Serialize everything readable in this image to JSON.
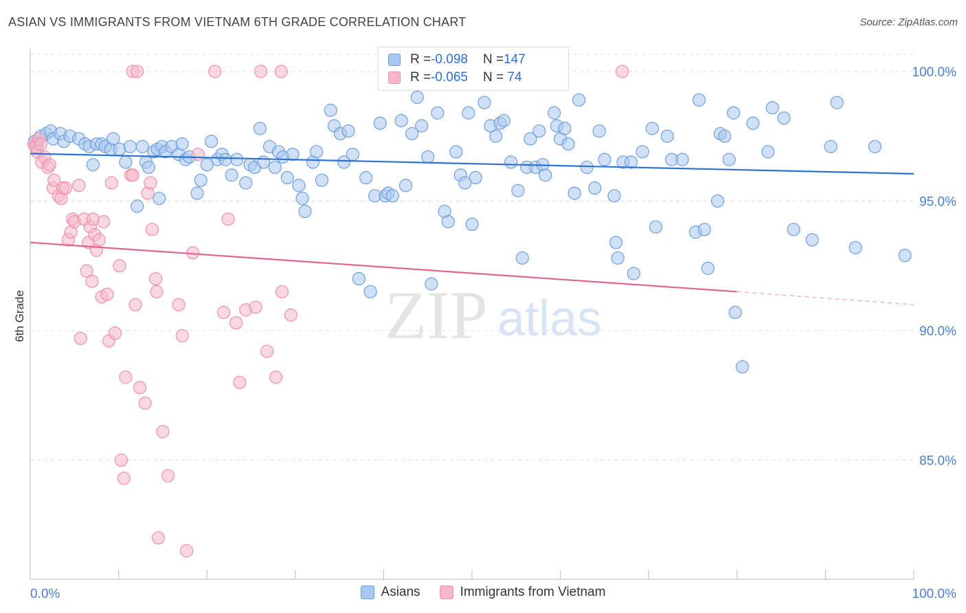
{
  "title": "ASIAN VS IMMIGRANTS FROM VIETNAM 6TH GRADE CORRELATION CHART",
  "source": "Source: ZipAtlas.com",
  "watermark": {
    "zip": "ZIP",
    "atlas": "atlas"
  },
  "colors": {
    "blue_fill": "#a9c8f0",
    "blue_stroke": "#6e9fdc",
    "blue_line": "#2d72d2",
    "pink_fill": "#f5b8cb",
    "pink_stroke": "#ee8fac",
    "pink_line": "#e0658e",
    "axis_text": "#4a7fd0",
    "grid": "#dddddd"
  },
  "legend": {
    "rows": [
      {
        "r_label": "R = ",
        "r_value": "-0.098",
        "n_label": "N = ",
        "n_value": "147"
      },
      {
        "r_label": "R = ",
        "r_value": "-0.065",
        "n_label": "N = ",
        "n_value": " 74"
      }
    ]
  },
  "chart_data": {
    "type": "scatter",
    "title": "ASIAN VS IMMIGRANTS FROM VIETNAM 6TH GRADE CORRELATION CHART",
    "ylabel": "6th Grade",
    "xlabel": "",
    "xlim": [
      0,
      100
    ],
    "ylim": [
      80.4,
      100.9
    ],
    "x_tick_labels": [
      "0.0%",
      "100.0%"
    ],
    "y_ticks": [
      85,
      90,
      95,
      100
    ],
    "y_tick_labels": [
      "85.0%",
      "90.0%",
      "95.0%",
      "100.0%"
    ],
    "grid": true,
    "legend_position": "bottom",
    "series": [
      {
        "name": "Asians",
        "trend": {
          "x0": 0,
          "y0": 96.83,
          "x1": 100,
          "y1": 96.05
        },
        "points": [
          [
            0.5,
            97.3
          ],
          [
            0.8,
            97.2
          ],
          [
            1.2,
            97.5
          ],
          [
            1.8,
            97.6
          ],
          [
            2.3,
            97.7
          ],
          [
            2.6,
            97.4
          ],
          [
            3.4,
            97.6
          ],
          [
            3.8,
            97.3
          ],
          [
            4.5,
            97.5
          ],
          [
            5.5,
            97.4
          ],
          [
            6.2,
            97.2
          ],
          [
            6.7,
            97.1
          ],
          [
            7.1,
            96.4
          ],
          [
            7.5,
            97.2
          ],
          [
            8.1,
            97.2
          ],
          [
            8.5,
            97.1
          ],
          [
            9.1,
            97.0
          ],
          [
            9.4,
            97.4
          ],
          [
            10.1,
            97.0
          ],
          [
            10.8,
            96.5
          ],
          [
            11.3,
            97.1
          ],
          [
            12.1,
            94.8
          ],
          [
            12.7,
            97.1
          ],
          [
            13.1,
            96.5
          ],
          [
            13.4,
            96.3
          ],
          [
            14.0,
            96.9
          ],
          [
            14.4,
            97.0
          ],
          [
            14.6,
            95.1
          ],
          [
            14.9,
            97.1
          ],
          [
            15.3,
            96.9
          ],
          [
            16.0,
            97.1
          ],
          [
            16.8,
            96.8
          ],
          [
            17.2,
            97.2
          ],
          [
            17.6,
            96.6
          ],
          [
            18.0,
            96.7
          ],
          [
            18.9,
            95.3
          ],
          [
            19.3,
            95.8
          ],
          [
            20.0,
            96.4
          ],
          [
            20.5,
            97.3
          ],
          [
            21.2,
            96.6
          ],
          [
            21.7,
            96.8
          ],
          [
            22.1,
            96.6
          ],
          [
            22.8,
            96.0
          ],
          [
            23.4,
            96.6
          ],
          [
            24.4,
            95.7
          ],
          [
            24.9,
            96.4
          ],
          [
            25.4,
            96.3
          ],
          [
            26.0,
            97.8
          ],
          [
            26.4,
            96.5
          ],
          [
            27.1,
            97.1
          ],
          [
            27.7,
            96.3
          ],
          [
            28.1,
            96.9
          ],
          [
            28.6,
            96.7
          ],
          [
            29.1,
            95.9
          ],
          [
            29.7,
            96.8
          ],
          [
            30.4,
            95.6
          ],
          [
            30.8,
            95.1
          ],
          [
            31.1,
            94.6
          ],
          [
            32.0,
            96.5
          ],
          [
            32.4,
            96.9
          ],
          [
            33.0,
            95.8
          ],
          [
            34.0,
            98.5
          ],
          [
            34.4,
            97.9
          ],
          [
            35.1,
            97.6
          ],
          [
            35.5,
            96.5
          ],
          [
            36.0,
            97.7
          ],
          [
            36.5,
            96.8
          ],
          [
            37.2,
            92.0
          ],
          [
            38.0,
            95.9
          ],
          [
            38.5,
            91.5
          ],
          [
            39.0,
            95.2
          ],
          [
            39.6,
            98.0
          ],
          [
            40.2,
            95.2
          ],
          [
            40.5,
            95.3
          ],
          [
            41.0,
            95.2
          ],
          [
            42.0,
            98.1
          ],
          [
            42.5,
            95.6
          ],
          [
            43.2,
            97.6
          ],
          [
            43.8,
            99.0
          ],
          [
            44.3,
            97.9
          ],
          [
            45.0,
            96.7
          ],
          [
            45.4,
            91.8
          ],
          [
            46.1,
            98.4
          ],
          [
            46.9,
            94.6
          ],
          [
            47.3,
            94.2
          ],
          [
            48.2,
            96.9
          ],
          [
            48.7,
            96.0
          ],
          [
            49.2,
            95.7
          ],
          [
            49.6,
            98.4
          ],
          [
            50.0,
            94.1
          ],
          [
            50.4,
            95.9
          ],
          [
            51.4,
            98.8
          ],
          [
            52.1,
            97.9
          ],
          [
            52.7,
            97.5
          ],
          [
            53.2,
            98.0
          ],
          [
            53.6,
            98.1
          ],
          [
            54.4,
            96.5
          ],
          [
            55.2,
            95.4
          ],
          [
            55.7,
            92.8
          ],
          [
            56.2,
            96.3
          ],
          [
            56.6,
            97.4
          ],
          [
            57.2,
            96.3
          ],
          [
            57.6,
            97.7
          ],
          [
            58.0,
            96.4
          ],
          [
            58.3,
            96.0
          ],
          [
            59.3,
            98.4
          ],
          [
            59.6,
            97.9
          ],
          [
            60.0,
            97.4
          ],
          [
            60.5,
            97.8
          ],
          [
            60.9,
            97.2
          ],
          [
            61.6,
            95.3
          ],
          [
            62.1,
            98.9
          ],
          [
            63.0,
            96.3
          ],
          [
            63.9,
            95.5
          ],
          [
            64.4,
            97.7
          ],
          [
            65.0,
            96.6
          ],
          [
            66.1,
            95.2
          ],
          [
            66.3,
            93.4
          ],
          [
            66.5,
            92.8
          ],
          [
            67.1,
            96.5
          ],
          [
            68.0,
            96.5
          ],
          [
            68.3,
            92.2
          ],
          [
            69.3,
            96.9
          ],
          [
            70.4,
            97.8
          ],
          [
            70.8,
            94.0
          ],
          [
            72.1,
            97.5
          ],
          [
            72.6,
            96.6
          ],
          [
            73.8,
            96.6
          ],
          [
            75.3,
            93.8
          ],
          [
            75.7,
            98.9
          ],
          [
            76.3,
            93.9
          ],
          [
            76.7,
            92.4
          ],
          [
            77.8,
            95.0
          ],
          [
            78.1,
            97.6
          ],
          [
            78.6,
            97.5
          ],
          [
            79.1,
            96.6
          ],
          [
            79.6,
            98.4
          ],
          [
            79.8,
            90.7
          ],
          [
            80.6,
            88.6
          ],
          [
            81.8,
            98.0
          ],
          [
            83.5,
            96.9
          ],
          [
            84.0,
            98.6
          ],
          [
            85.3,
            98.2
          ],
          [
            86.4,
            93.9
          ],
          [
            88.5,
            93.5
          ],
          [
            90.6,
            97.1
          ],
          [
            91.3,
            98.8
          ],
          [
            93.4,
            93.2
          ],
          [
            95.6,
            97.1
          ],
          [
            99.0,
            92.9
          ]
        ]
      },
      {
        "name": "Immigrants from Vietnam",
        "trend": {
          "x0": 0,
          "y0": 93.4,
          "x1": 80,
          "y1": 91.5
        },
        "trend_extension": {
          "x0": 80,
          "y0": 91.5,
          "x1": 100,
          "y1": 91.0
        },
        "points": [
          [
            0.4,
            97.2
          ],
          [
            0.6,
            97.1
          ],
          [
            0.8,
            96.9
          ],
          [
            1.0,
            97.4
          ],
          [
            1.2,
            97.2
          ],
          [
            1.3,
            96.5
          ],
          [
            1.6,
            96.7
          ],
          [
            2.0,
            96.3
          ],
          [
            2.2,
            96.4
          ],
          [
            2.6,
            95.5
          ],
          [
            2.7,
            95.8
          ],
          [
            3.2,
            95.2
          ],
          [
            3.5,
            95.1
          ],
          [
            3.7,
            95.5
          ],
          [
            4.0,
            95.5
          ],
          [
            4.3,
            93.5
          ],
          [
            4.6,
            93.8
          ],
          [
            4.8,
            94.3
          ],
          [
            5.0,
            94.2
          ],
          [
            5.5,
            95.6
          ],
          [
            5.7,
            89.7
          ],
          [
            6.1,
            94.3
          ],
          [
            6.4,
            92.3
          ],
          [
            6.6,
            93.4
          ],
          [
            6.8,
            94.0
          ],
          [
            7.0,
            91.9
          ],
          [
            7.1,
            94.3
          ],
          [
            7.3,
            93.7
          ],
          [
            7.5,
            93.1
          ],
          [
            7.8,
            93.5
          ],
          [
            8.1,
            91.3
          ],
          [
            8.3,
            94.2
          ],
          [
            8.7,
            91.4
          ],
          [
            8.9,
            89.6
          ],
          [
            9.2,
            95.7
          ],
          [
            9.6,
            89.9
          ],
          [
            10.1,
            92.5
          ],
          [
            10.3,
            85.0
          ],
          [
            10.6,
            84.3
          ],
          [
            10.8,
            88.2
          ],
          [
            11.4,
            96.0
          ],
          [
            11.6,
            96.0
          ],
          [
            11.9,
            91.0
          ],
          [
            12.4,
            87.8
          ],
          [
            13.0,
            87.2
          ],
          [
            13.3,
            95.3
          ],
          [
            13.6,
            95.7
          ],
          [
            13.8,
            93.9
          ],
          [
            14.2,
            92.0
          ],
          [
            14.3,
            91.5
          ],
          [
            14.5,
            82.0
          ],
          [
            15.0,
            86.1
          ],
          [
            15.6,
            84.4
          ],
          [
            16.8,
            91.0
          ],
          [
            17.2,
            89.8
          ],
          [
            17.7,
            81.5
          ],
          [
            18.4,
            93.0
          ],
          [
            19.0,
            96.8
          ],
          [
            21.9,
            90.7
          ],
          [
            22.4,
            94.3
          ],
          [
            23.3,
            90.3
          ],
          [
            23.7,
            88.0
          ],
          [
            24.4,
            90.8
          ],
          [
            25.5,
            90.9
          ],
          [
            26.8,
            89.2
          ],
          [
            27.8,
            88.2
          ],
          [
            28.5,
            91.5
          ],
          [
            29.5,
            90.6
          ],
          [
            11.6,
            100.0
          ],
          [
            12.1,
            100.0
          ],
          [
            20.9,
            100.0
          ],
          [
            26.1,
            100.0
          ],
          [
            28.4,
            100.0
          ],
          [
            67.0,
            100.0
          ]
        ]
      }
    ]
  }
}
